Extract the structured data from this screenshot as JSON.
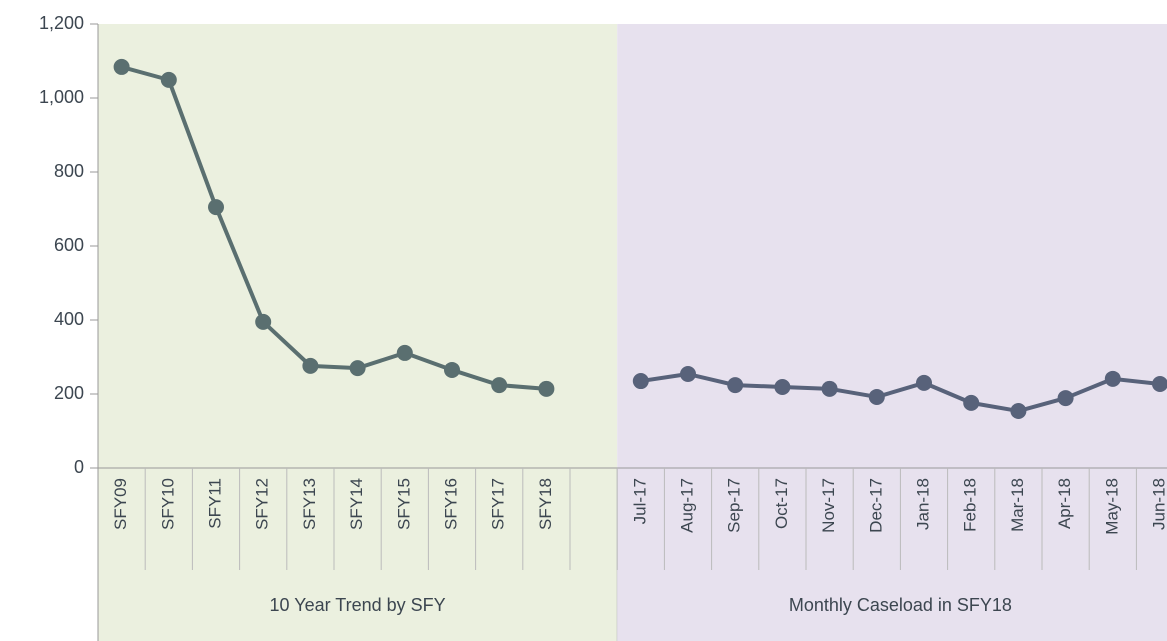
{
  "chart_data": {
    "type": "line",
    "categories": [
      "SFY09",
      "SFY10",
      "SFY11",
      "SFY12",
      "SFY13",
      "SFY14",
      "SFY15",
      "SFY16",
      "SFY17",
      "SFY18",
      null,
      "Jul-17",
      "Aug-17",
      "Sep-17",
      "Oct-17",
      "Nov-17",
      "Dec-17",
      "Jan-18",
      "Feb-18",
      "Mar-18",
      "Apr-18",
      "May-18",
      "Jun-18"
    ],
    "groups": [
      {
        "label": "10 Year Trend by SFY",
        "span": [
          0,
          10
        ],
        "color": "#ebf0df"
      },
      {
        "label": "Monthly Caseload in SFY18",
        "span": [
          11,
          22
        ],
        "color": "#e7e1ee"
      }
    ],
    "series": [
      {
        "color": "#5a6f70",
        "values": [
          1084,
          1049,
          705,
          395,
          276,
          270,
          311,
          265,
          224,
          214,
          null,
          null,
          null,
          null,
          null,
          null,
          null,
          null,
          null,
          null,
          null,
          null,
          null
        ]
      },
      {
        "color": "#58627a",
        "values": [
          null,
          null,
          null,
          null,
          null,
          null,
          null,
          null,
          null,
          null,
          null,
          235,
          254,
          224,
          219,
          214,
          192,
          230,
          176,
          154,
          189,
          241,
          227
        ]
      }
    ],
    "ylim": [
      0,
      1200
    ],
    "yticks": [
      0,
      200,
      400,
      600,
      800,
      {
        "value": 1000,
        "label": "1,000"
      },
      {
        "value": 1200,
        "label": "1,200"
      }
    ]
  }
}
